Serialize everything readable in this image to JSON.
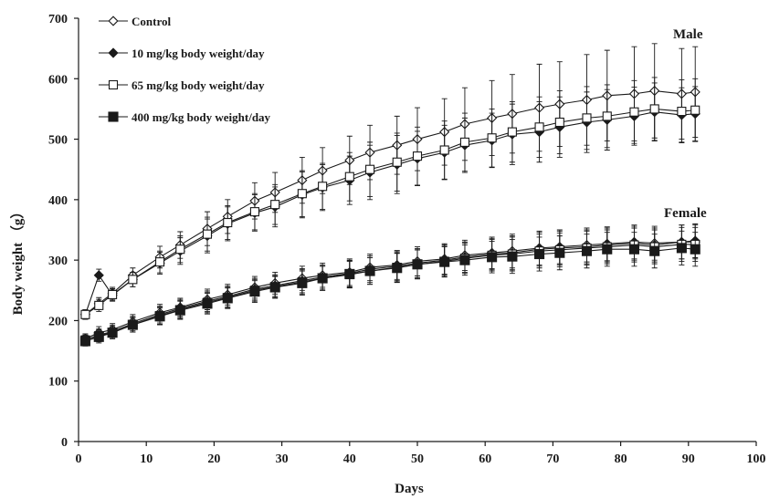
{
  "chart_data": {
    "type": "line",
    "xlabel": "Days",
    "ylabel": "Body weight （g）",
    "xlim": [
      0,
      100
    ],
    "ylim": [
      0,
      700
    ],
    "xticks": [
      "0",
      "10",
      "20",
      "30",
      "40",
      "50",
      "60",
      "70",
      "80",
      "90",
      "100"
    ],
    "yticks": [
      "0",
      "100",
      "200",
      "300",
      "400",
      "500",
      "600",
      "700"
    ],
    "grid": false,
    "legend_position": "top-left",
    "annotations": {
      "male": "Male",
      "female": "Female"
    },
    "x": [
      1,
      3,
      5,
      8,
      12,
      15,
      19,
      22,
      26,
      29,
      33,
      36,
      40,
      43,
      47,
      50,
      54,
      57,
      61,
      64,
      68,
      71,
      75,
      78,
      82,
      85,
      89,
      91
    ],
    "series": [
      {
        "name": "Control",
        "group": "Male",
        "marker": "open-diamond",
        "values": [
          210,
          228,
          245,
          275,
          305,
          325,
          352,
          372,
          398,
          412,
          432,
          448,
          465,
          478,
          490,
          500,
          512,
          525,
          535,
          542,
          552,
          558,
          565,
          572,
          575,
          580,
          575,
          578
        ],
        "errors": [
          8,
          10,
          10,
          12,
          18,
          22,
          28,
          28,
          30,
          33,
          38,
          38,
          40,
          45,
          48,
          52,
          55,
          60,
          62,
          65,
          72,
          70,
          75,
          75,
          78,
          78,
          75,
          75
        ]
      },
      {
        "name": "10 mg/kg body weight/day",
        "group": "Male",
        "marker": "filled-diamond",
        "values": [
          210,
          275,
          242,
          268,
          295,
          315,
          340,
          360,
          378,
          388,
          408,
          420,
          432,
          445,
          458,
          468,
          478,
          490,
          498,
          508,
          512,
          520,
          528,
          532,
          538,
          545,
          540,
          542
        ],
        "errors": [
          8,
          10,
          10,
          12,
          18,
          22,
          28,
          28,
          30,
          33,
          38,
          38,
          40,
          45,
          48,
          45,
          45,
          45,
          45,
          50,
          50,
          50,
          50,
          50,
          48,
          48,
          45,
          45
        ]
      },
      {
        "name": "65 mg/kg body weight/day",
        "group": "Male",
        "marker": "open-square",
        "values": [
          210,
          225,
          243,
          268,
          297,
          318,
          343,
          362,
          380,
          392,
          410,
          422,
          438,
          450,
          462,
          472,
          482,
          495,
          502,
          512,
          520,
          528,
          535,
          538,
          545,
          550,
          546,
          548
        ],
        "errors": [
          8,
          10,
          10,
          12,
          18,
          22,
          28,
          28,
          30,
          33,
          38,
          38,
          40,
          45,
          48,
          48,
          48,
          48,
          48,
          50,
          50,
          52,
          52,
          52,
          52,
          52,
          52,
          52
        ]
      },
      {
        "name": "Control",
        "group": "Female",
        "marker": "open-diamond",
        "legend": false,
        "values": [
          170,
          180,
          185,
          198,
          213,
          222,
          235,
          243,
          255,
          262,
          270,
          275,
          280,
          288,
          292,
          298,
          302,
          308,
          312,
          315,
          320,
          322,
          325,
          327,
          330,
          328,
          330,
          330
        ],
        "errors": [
          8,
          10,
          10,
          12,
          14,
          15,
          17,
          17,
          18,
          18,
          20,
          20,
          22,
          22,
          24,
          24,
          25,
          25,
          26,
          28,
          28,
          28,
          28,
          28,
          28,
          28,
          28,
          28
        ]
      },
      {
        "name": "10 mg/kg body weight/day",
        "group": "Female",
        "marker": "filled-diamond",
        "legend": false,
        "values": [
          168,
          176,
          182,
          195,
          210,
          220,
          232,
          240,
          252,
          258,
          266,
          272,
          278,
          285,
          290,
          295,
          300,
          305,
          310,
          312,
          318,
          320,
          322,
          325,
          328,
          325,
          330,
          332
        ],
        "errors": [
          8,
          10,
          10,
          12,
          14,
          15,
          17,
          17,
          18,
          18,
          20,
          20,
          22,
          22,
          24,
          24,
          25,
          25,
          26,
          28,
          28,
          28,
          28,
          28,
          28,
          28,
          28,
          28
        ]
      },
      {
        "name": "65 mg/kg body weight/day",
        "group": "Female",
        "marker": "open-square",
        "legend": false,
        "values": [
          168,
          175,
          180,
          193,
          208,
          218,
          230,
          238,
          250,
          256,
          264,
          270,
          276,
          282,
          288,
          293,
          298,
          303,
          308,
          310,
          315,
          317,
          320,
          322,
          325,
          322,
          326,
          326
        ],
        "errors": [
          8,
          10,
          10,
          12,
          14,
          15,
          17,
          17,
          18,
          18,
          20,
          20,
          22,
          22,
          24,
          24,
          25,
          25,
          26,
          28,
          28,
          28,
          28,
          28,
          28,
          28,
          28,
          28
        ]
      },
      {
        "name": "400 mg/kg body weight/day",
        "group": "Female",
        "marker": "filled-square",
        "values": [
          166,
          173,
          180,
          193,
          207,
          217,
          228,
          237,
          248,
          255,
          262,
          270,
          277,
          282,
          287,
          293,
          297,
          300,
          305,
          306,
          310,
          312,
          315,
          318,
          318,
          315,
          320,
          318
        ],
        "errors": [
          8,
          10,
          10,
          12,
          14,
          15,
          17,
          17,
          18,
          18,
          20,
          20,
          22,
          22,
          24,
          24,
          25,
          25,
          26,
          28,
          28,
          28,
          28,
          28,
          28,
          28,
          28,
          28
        ]
      }
    ]
  }
}
